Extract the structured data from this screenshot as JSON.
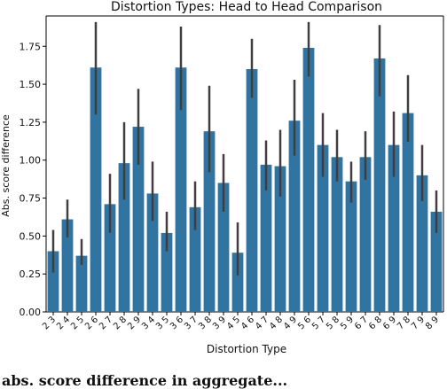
{
  "chart_data": {
    "type": "bar",
    "title": "Distortion Types: Head to Head Comparison",
    "xlabel": "Distortion Type",
    "ylabel": "Abs. score difference",
    "ylim": [
      0,
      1.95
    ],
    "yticks": [
      "0.00",
      "0.25",
      "0.50",
      "0.75",
      "1.00",
      "1.25",
      "1.50",
      "1.75"
    ],
    "grid": false,
    "bar_color": "#3274a1",
    "errorbar_color": "#3f3f3f",
    "categories": [
      "2 3",
      "2 4",
      "2 5",
      "2 6",
      "2 7",
      "2 8",
      "2 9",
      "3 4",
      "3 5",
      "3 6",
      "3 7",
      "3 8",
      "3 9",
      "4 5",
      "4 6",
      "4 7",
      "4 8",
      "4 9",
      "5 6",
      "5 7",
      "5 8",
      "5 9",
      "6 7",
      "6 8",
      "6 9",
      "7 8",
      "7 9",
      "8 9"
    ],
    "values": [
      0.4,
      0.61,
      0.37,
      1.61,
      0.71,
      0.98,
      1.22,
      0.78,
      0.52,
      1.61,
      0.69,
      1.19,
      0.85,
      0.39,
      1.6,
      0.97,
      0.96,
      1.26,
      1.74,
      1.1,
      1.02,
      0.86,
      1.02,
      1.67,
      1.1,
      1.31,
      0.9,
      0.66
    ],
    "error_low": [
      0.26,
      0.49,
      0.31,
      1.3,
      0.52,
      0.74,
      0.97,
      0.6,
      0.4,
      1.33,
      0.54,
      0.92,
      0.66,
      0.24,
      1.41,
      0.8,
      0.76,
      1.03,
      1.55,
      0.89,
      0.86,
      0.72,
      0.87,
      1.42,
      0.89,
      1.12,
      0.73,
      0.52
    ],
    "error_high": [
      0.54,
      0.74,
      0.48,
      1.91,
      0.91,
      1.25,
      1.47,
      0.99,
      0.66,
      1.88,
      0.86,
      1.49,
      1.04,
      0.59,
      1.8,
      1.13,
      1.2,
      1.53,
      1.91,
      1.31,
      1.2,
      0.99,
      1.19,
      1.89,
      1.32,
      1.56,
      1.1,
      0.8
    ]
  },
  "caption": "abs. score difference in aggregate..."
}
